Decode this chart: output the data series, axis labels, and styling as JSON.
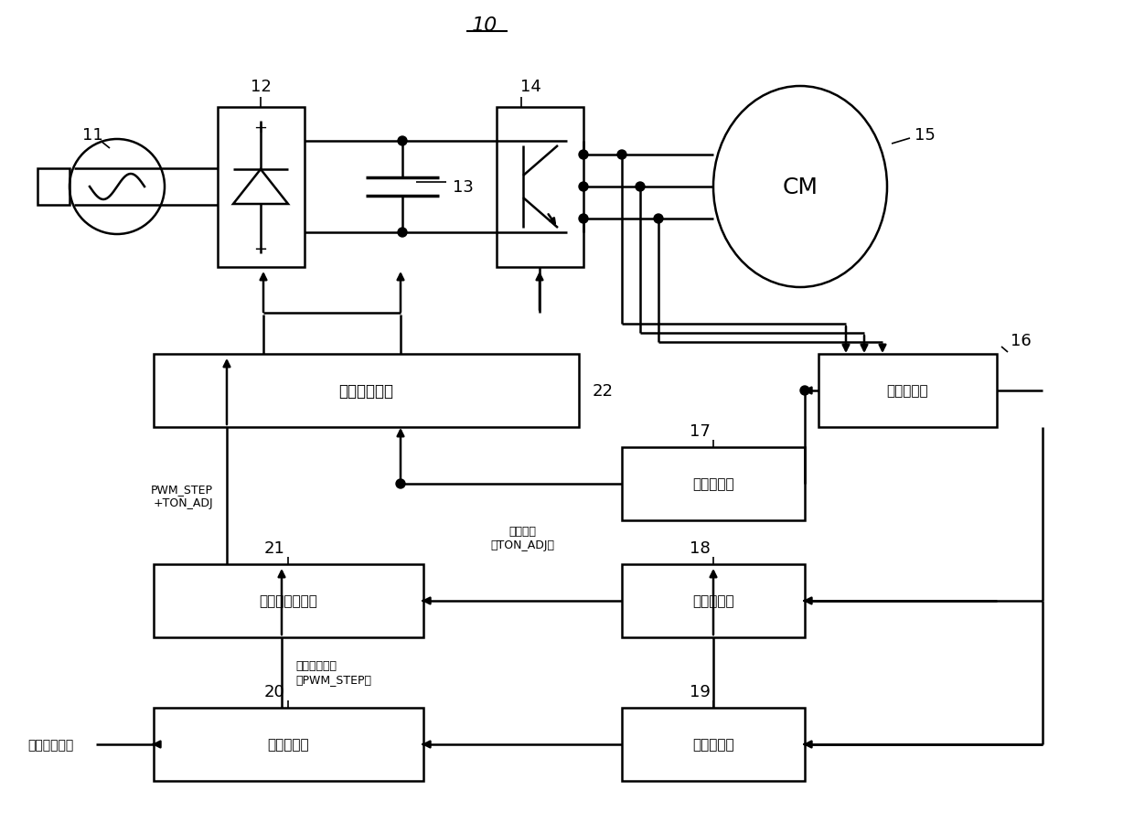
{
  "bg_color": "#ffffff",
  "line_color": "#000000",
  "box_labels": {
    "inverter_out": "逆变器输出部",
    "position": "位置检测部",
    "switch": "转换控制部",
    "torque": "转矩控制部",
    "voltage": "输出电压合成部",
    "speed_ctrl": "速度控制部",
    "speed_calc": "速度计算部",
    "CM": "CM"
  },
  "text": {
    "title": "10",
    "label_11": "11",
    "label_12": "12",
    "label_13": "13",
    "label_14": "14",
    "label_15": "15",
    "label_16": "16",
    "label_17": "17",
    "label_18": "18",
    "label_19": "19",
    "label_20": "20",
    "label_21": "21",
    "label_22": "22",
    "pwm_step_ton": "PWM_STEP\n+TON_ADJ",
    "ton_adj_label": "调整电压\n（TON_ADJ）",
    "pwm_step_label": "平均输出电压\n（PWM_STEP）",
    "speed_cmd": "（指令速度）"
  }
}
